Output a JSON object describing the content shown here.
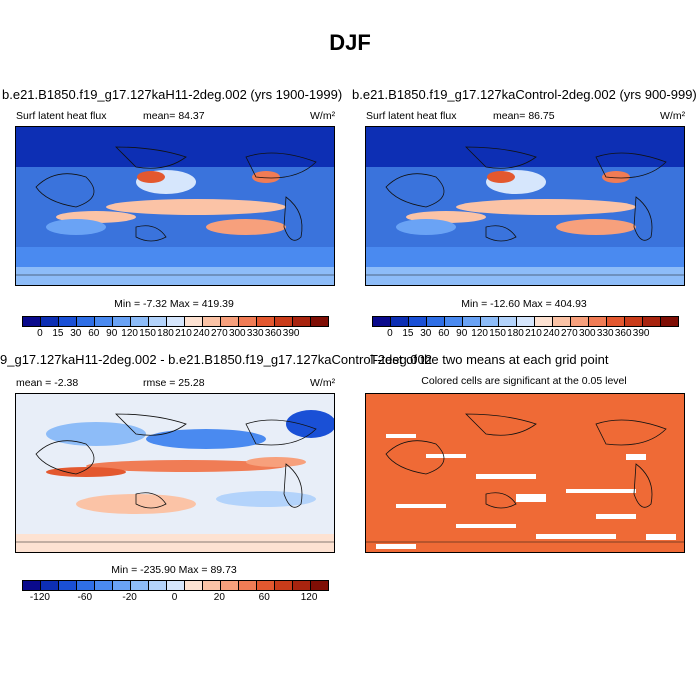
{
  "title": "DJF",
  "panels": [
    {
      "id": "top-left",
      "title": "b.e21.B1850.f19_g17.127kaH11-2deg.002 (yrs 1900-1999)",
      "left_label": "Surf latent heat flux",
      "center_label": "mean=  84.37",
      "units": "W/m²",
      "stats": "Min =  -7.32 Max = 419.39"
    },
    {
      "id": "top-right",
      "title": "b.e21.B1850.f19_g17.127kaControl-2deg.002 (yrs 900-999)",
      "left_label": "Surf latent heat flux",
      "center_label": "mean=  86.75",
      "units": "W/m²",
      "stats": "Min = -12.60 Max = 404.93"
    },
    {
      "id": "bottom-left",
      "title": "9_g17.127kaH11-2deg.002 - b.e21.B1850.f19_g17.127kaControl-2deg.002",
      "left_label": "mean =  -2.38",
      "center_label": "rmse =  25.28",
      "units": "W/m²",
      "stats": "Min = -235.90 Max =  89.73"
    },
    {
      "id": "bottom-right",
      "title": "T-test of the two means at each grid point",
      "subtitle": "Colored cells are significant at the 0.05 level"
    }
  ],
  "colorbars": {
    "flux": {
      "colors": [
        "#0a0a8c",
        "#0d2fb4",
        "#1a50d6",
        "#2f6fe6",
        "#4a8af0",
        "#6aa3f5",
        "#8dbcf8",
        "#b3d3fb",
        "#d6e6fc",
        "#fde2d2",
        "#fbc3a6",
        "#f7a07c",
        "#f07c55",
        "#e3582f",
        "#c93c1a",
        "#a8240f",
        "#7f0e05"
      ],
      "labels": [
        "0",
        "15",
        "30",
        "60",
        "90",
        "120",
        "150",
        "180",
        "210",
        "240",
        "270",
        "300",
        "330",
        "360",
        "390"
      ]
    },
    "diff": {
      "colors": [
        "#0a0a8c",
        "#0d2fb4",
        "#1a50d6",
        "#2f6fe6",
        "#4a8af0",
        "#6aa3f5",
        "#8dbcf8",
        "#b3d3fb",
        "#d6e6fc",
        "#fde2d2",
        "#fbc3a6",
        "#f7a07c",
        "#f07c55",
        "#e3582f",
        "#c93c1a",
        "#a8240f",
        "#7f0e05"
      ],
      "labels": [
        "-120",
        "-60",
        "-20",
        "0",
        "20",
        "60",
        "120"
      ]
    }
  }
}
